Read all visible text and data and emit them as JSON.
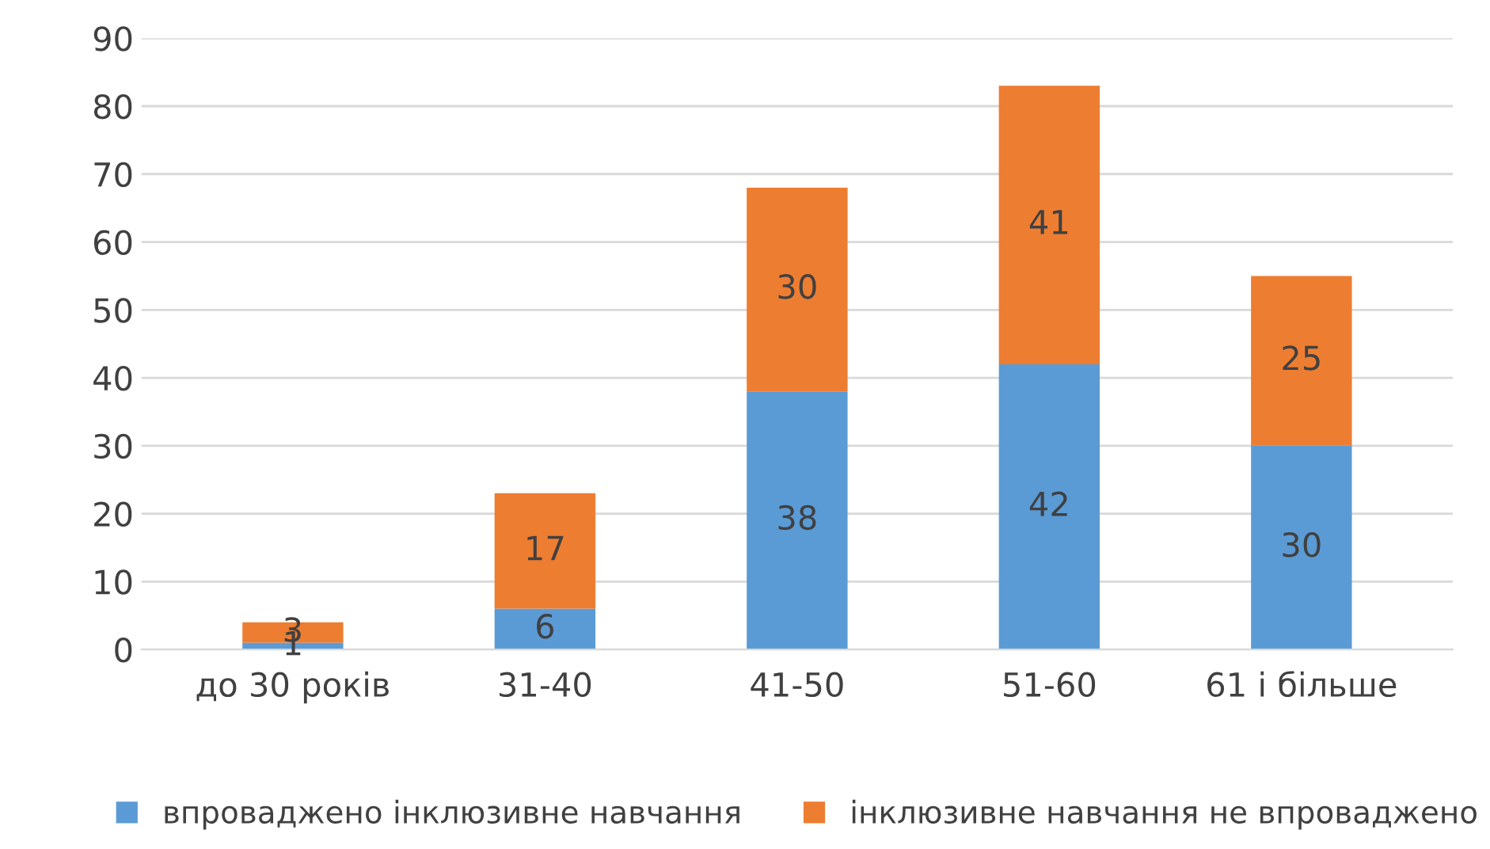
{
  "chart_data": {
    "type": "bar",
    "stacked": true,
    "data_labels": true,
    "grid": "y",
    "legend": "bottom",
    "categories": [
      "до 30 років",
      "31-40",
      "41-50",
      "51-60",
      "61 і більше"
    ],
    "ylim": [
      0,
      90
    ],
    "yticks": [
      0,
      10,
      20,
      30,
      40,
      50,
      60,
      70,
      80,
      90
    ],
    "series": [
      {
        "name": "впроваджено інклюзивне навчання",
        "color": "#5b9bd5",
        "values": [
          1,
          6,
          38,
          42,
          30
        ]
      },
      {
        "name": "інклюзивне навчання не впроваджено",
        "color": "#ed7d31",
        "values": [
          3,
          17,
          30,
          41,
          25
        ]
      }
    ]
  }
}
